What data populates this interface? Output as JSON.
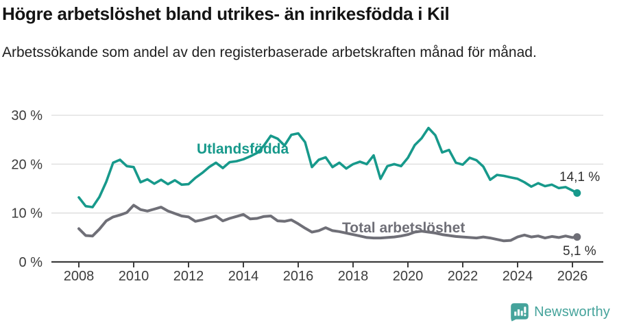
{
  "header": {
    "title": "Högre arbetslöshet bland utrikes- än inrikesfödda i Kil",
    "subtitle": "Arbetssökande som andel av den registerbaserade arbetskraften månad för månad."
  },
  "series_labels": {
    "utlandsfodda": "Utlandsfödda",
    "total": "Total arbetslöshet"
  },
  "end_values": {
    "utlandsfodda": "14,1 %",
    "total": "5,1 %"
  },
  "footer": {
    "brand": "Newsworthy"
  },
  "colors": {
    "teal_line": "#17998b",
    "gray_line": "#6f6f77",
    "grid": "#dcdcdc",
    "axis": "#3c3c3c",
    "tick_text": "#3c3c3c",
    "end_label_text": "#2e2e2e",
    "logo_teal": "#45a39b"
  },
  "chart_data": {
    "type": "line",
    "title": "Högre arbetslöshet bland utrikes- än inrikesfödda i Kil",
    "subtitle": "Arbetssökande som andel av den registerbaserade arbetskraften månad för månad.",
    "xlabel": "",
    "ylabel": "",
    "grid": true,
    "xlim": [
      2007,
      2026.3
    ],
    "ylim": [
      0,
      30
    ],
    "y_ticks": [
      0,
      10,
      20,
      30
    ],
    "y_tick_labels": [
      "0 %",
      "10 %",
      "20 %",
      "30 %"
    ],
    "x_ticks": [
      2008,
      2010,
      2012,
      2014,
      2016,
      2018,
      2020,
      2022,
      2024,
      2026
    ],
    "x_tick_labels": [
      "2008",
      "2010",
      "2012",
      "2014",
      "2016",
      "2018",
      "2020",
      "2022",
      "2024",
      "2026"
    ],
    "x_unit": "year (quarterly samples of monthly data)",
    "x": [
      2008.0,
      2008.25,
      2008.5,
      2008.75,
      2009.0,
      2009.25,
      2009.5,
      2009.75,
      2010.0,
      2010.25,
      2010.5,
      2010.75,
      2011.0,
      2011.25,
      2011.5,
      2011.75,
      2012.0,
      2012.25,
      2012.5,
      2012.75,
      2013.0,
      2013.25,
      2013.5,
      2013.75,
      2014.0,
      2014.25,
      2014.5,
      2014.75,
      2015.0,
      2015.25,
      2015.5,
      2015.75,
      2016.0,
      2016.25,
      2016.5,
      2016.75,
      2017.0,
      2017.25,
      2017.5,
      2017.75,
      2018.0,
      2018.25,
      2018.5,
      2018.75,
      2019.0,
      2019.25,
      2019.5,
      2019.75,
      2020.0,
      2020.25,
      2020.5,
      2020.75,
      2021.0,
      2021.25,
      2021.5,
      2021.75,
      2022.0,
      2022.25,
      2022.5,
      2022.75,
      2023.0,
      2023.25,
      2023.5,
      2023.75,
      2024.0,
      2024.25,
      2024.5,
      2024.75,
      2025.0,
      2025.25,
      2025.5,
      2025.75,
      2026.0,
      2026.17
    ],
    "series": [
      {
        "name": "Utlandsfödda",
        "end_value": 14.1,
        "end_value_label": "14,1 %",
        "values": [
          13.2,
          11.4,
          11.2,
          13.3,
          16.4,
          20.3,
          20.9,
          19.6,
          19.4,
          16.3,
          16.9,
          16.0,
          16.8,
          15.9,
          16.7,
          15.8,
          15.9,
          17.2,
          18.2,
          19.4,
          20.3,
          19.2,
          20.4,
          20.6,
          21.0,
          21.6,
          22.3,
          23.8,
          25.8,
          25.2,
          23.8,
          26.0,
          26.3,
          24.5,
          19.4,
          20.9,
          21.4,
          19.4,
          20.3,
          19.1,
          20.0,
          20.5,
          20.0,
          21.8,
          17.0,
          19.6,
          20.0,
          19.6,
          21.3,
          23.9,
          25.3,
          27.4,
          25.9,
          22.4,
          22.9,
          20.3,
          19.9,
          21.3,
          20.8,
          19.5,
          16.8,
          17.8,
          17.6,
          17.3,
          17.0,
          16.3,
          15.4,
          16.1,
          15.5,
          15.8,
          15.1,
          15.3,
          14.6,
          14.1
        ]
      },
      {
        "name": "Total arbetslöshet",
        "end_value": 5.1,
        "end_value_label": "5,1 %",
        "values": [
          6.8,
          5.4,
          5.3,
          6.7,
          8.4,
          9.2,
          9.6,
          10.1,
          11.6,
          10.7,
          10.4,
          10.8,
          11.2,
          10.4,
          9.9,
          9.4,
          9.2,
          8.3,
          8.6,
          9.0,
          9.4,
          8.4,
          8.9,
          9.3,
          9.7,
          8.8,
          8.9,
          9.3,
          9.4,
          8.4,
          8.3,
          8.6,
          7.8,
          6.9,
          6.1,
          6.4,
          7.0,
          6.4,
          6.2,
          5.9,
          5.6,
          5.3,
          5.0,
          4.9,
          4.9,
          5.0,
          5.1,
          5.3,
          5.6,
          6.1,
          6.3,
          6.1,
          5.9,
          5.6,
          5.4,
          5.2,
          5.1,
          5.0,
          4.9,
          5.1,
          4.9,
          4.6,
          4.3,
          4.4,
          5.1,
          5.5,
          5.1,
          5.3,
          4.9,
          5.2,
          5.0,
          5.3,
          5.0,
          5.1
        ]
      }
    ],
    "legend_position": "inline-labels-on-lines",
    "annotations": [
      "14,1 %",
      "5,1 %"
    ]
  }
}
